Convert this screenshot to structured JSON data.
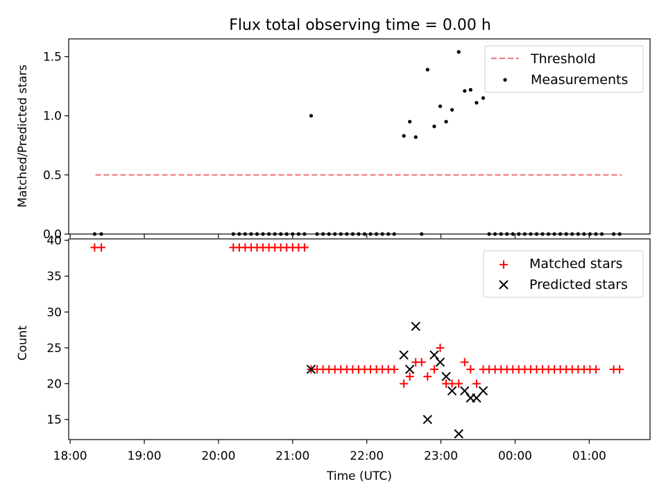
{
  "figure": {
    "title": "Flux total observing time = 0.00 h",
    "xlabel": "Time (UTC)",
    "xticks": [
      "18:00",
      "19:00",
      "20:00",
      "21:00",
      "22:00",
      "23:00",
      "00:00",
      "01:00"
    ]
  },
  "chart_data": [
    {
      "type": "scatter",
      "ylabel": "Matched/Predicted stars",
      "xlim": [
        17.98,
        25.82
      ],
      "ylim": [
        0,
        1.65
      ],
      "yticks": [
        "0.0",
        "0.5",
        "1.0",
        "1.5"
      ],
      "grid": false,
      "legend_position": "top-right",
      "threshold": {
        "name": "Threshold",
        "value": 0.5,
        "x_start": 18.34,
        "x_end": 25.44,
        "color": "#f08080"
      },
      "series": [
        {
          "name": "Measurements",
          "color": "#000000",
          "points": [
            [
              18.33,
              0
            ],
            [
              18.42,
              0
            ],
            [
              20.2,
              0
            ],
            [
              20.28,
              0
            ],
            [
              20.36,
              0
            ],
            [
              20.44,
              0
            ],
            [
              20.52,
              0
            ],
            [
              20.6,
              0
            ],
            [
              20.68,
              0
            ],
            [
              20.76,
              0
            ],
            [
              20.84,
              0
            ],
            [
              20.92,
              0
            ],
            [
              21.0,
              0
            ],
            [
              21.08,
              0
            ],
            [
              21.16,
              0
            ],
            [
              21.25,
              1.0
            ],
            [
              21.33,
              0
            ],
            [
              21.41,
              0
            ],
            [
              21.49,
              0
            ],
            [
              21.57,
              0
            ],
            [
              21.65,
              0
            ],
            [
              21.73,
              0
            ],
            [
              21.81,
              0
            ],
            [
              21.89,
              0
            ],
            [
              21.97,
              0
            ],
            [
              22.05,
              0
            ],
            [
              22.13,
              0
            ],
            [
              22.21,
              0
            ],
            [
              22.29,
              0
            ],
            [
              22.37,
              0
            ],
            [
              22.5,
              0.83
            ],
            [
              22.58,
              0.95
            ],
            [
              22.66,
              0.82
            ],
            [
              22.74,
              0
            ],
            [
              22.82,
              1.39
            ],
            [
              22.91,
              0.91
            ],
            [
              22.99,
              1.08
            ],
            [
              23.07,
              0.95
            ],
            [
              23.15,
              1.05
            ],
            [
              23.24,
              1.54
            ],
            [
              23.32,
              1.21
            ],
            [
              23.4,
              1.22
            ],
            [
              23.48,
              1.11
            ],
            [
              23.57,
              1.15
            ],
            [
              23.65,
              0
            ],
            [
              23.73,
              0
            ],
            [
              23.81,
              0
            ],
            [
              23.89,
              0
            ],
            [
              23.97,
              0
            ],
            [
              24.05,
              0
            ],
            [
              24.13,
              0
            ],
            [
              24.21,
              0
            ],
            [
              24.29,
              0
            ],
            [
              24.37,
              0
            ],
            [
              24.45,
              0
            ],
            [
              24.53,
              0
            ],
            [
              24.61,
              0
            ],
            [
              24.69,
              0
            ],
            [
              24.77,
              0
            ],
            [
              24.85,
              0
            ],
            [
              24.93,
              0
            ],
            [
              25.01,
              0
            ],
            [
              25.09,
              0
            ],
            [
              25.17,
              0
            ],
            [
              25.33,
              0
            ],
            [
              25.41,
              0
            ]
          ]
        }
      ]
    },
    {
      "type": "scatter",
      "ylabel": "Count",
      "xlim": [
        17.98,
        25.82
      ],
      "ylim": [
        12.2,
        40.2
      ],
      "yticks": [
        "15",
        "20",
        "25",
        "30",
        "35",
        "40"
      ],
      "grid": false,
      "legend_position": "top-right",
      "series": [
        {
          "name": "Matched stars",
          "color": "#ff0000",
          "marker": "plus",
          "points": [
            [
              18.33,
              39
            ],
            [
              18.42,
              39
            ],
            [
              20.2,
              39
            ],
            [
              20.28,
              39
            ],
            [
              20.36,
              39
            ],
            [
              20.44,
              39
            ],
            [
              20.52,
              39
            ],
            [
              20.6,
              39
            ],
            [
              20.68,
              39
            ],
            [
              20.76,
              39
            ],
            [
              20.84,
              39
            ],
            [
              20.92,
              39
            ],
            [
              21.0,
              39
            ],
            [
              21.08,
              39
            ],
            [
              21.16,
              39
            ],
            [
              21.25,
              22
            ],
            [
              21.33,
              22
            ],
            [
              21.41,
              22
            ],
            [
              21.49,
              22
            ],
            [
              21.57,
              22
            ],
            [
              21.65,
              22
            ],
            [
              21.73,
              22
            ],
            [
              21.81,
              22
            ],
            [
              21.89,
              22
            ],
            [
              21.97,
              22
            ],
            [
              22.05,
              22
            ],
            [
              22.13,
              22
            ],
            [
              22.21,
              22
            ],
            [
              22.29,
              22
            ],
            [
              22.37,
              22
            ],
            [
              22.5,
              20
            ],
            [
              22.58,
              21
            ],
            [
              22.66,
              23
            ],
            [
              22.74,
              23
            ],
            [
              22.82,
              21
            ],
            [
              22.91,
              22
            ],
            [
              22.99,
              25
            ],
            [
              23.07,
              20
            ],
            [
              23.15,
              20
            ],
            [
              23.24,
              20
            ],
            [
              23.32,
              23
            ],
            [
              23.4,
              22
            ],
            [
              23.48,
              20
            ],
            [
              23.57,
              22
            ],
            [
              23.65,
              22
            ],
            [
              23.73,
              22
            ],
            [
              23.81,
              22
            ],
            [
              23.89,
              22
            ],
            [
              23.97,
              22
            ],
            [
              24.05,
              22
            ],
            [
              24.13,
              22
            ],
            [
              24.21,
              22
            ],
            [
              24.29,
              22
            ],
            [
              24.37,
              22
            ],
            [
              24.45,
              22
            ],
            [
              24.53,
              22
            ],
            [
              24.61,
              22
            ],
            [
              24.69,
              22
            ],
            [
              24.77,
              22
            ],
            [
              24.85,
              22
            ],
            [
              24.93,
              22
            ],
            [
              25.01,
              22
            ],
            [
              25.09,
              22
            ],
            [
              25.33,
              22
            ],
            [
              25.41,
              22
            ]
          ]
        },
        {
          "name": "Predicted stars",
          "color": "#000000",
          "marker": "x",
          "points": [
            [
              21.25,
              22
            ],
            [
              22.5,
              24
            ],
            [
              22.58,
              22
            ],
            [
              22.66,
              28
            ],
            [
              22.82,
              15
            ],
            [
              22.91,
              24
            ],
            [
              22.99,
              23
            ],
            [
              23.07,
              21
            ],
            [
              23.15,
              19
            ],
            [
              23.24,
              13
            ],
            [
              23.32,
              19
            ],
            [
              23.4,
              18
            ],
            [
              23.48,
              18
            ],
            [
              23.57,
              19
            ]
          ]
        }
      ]
    }
  ]
}
